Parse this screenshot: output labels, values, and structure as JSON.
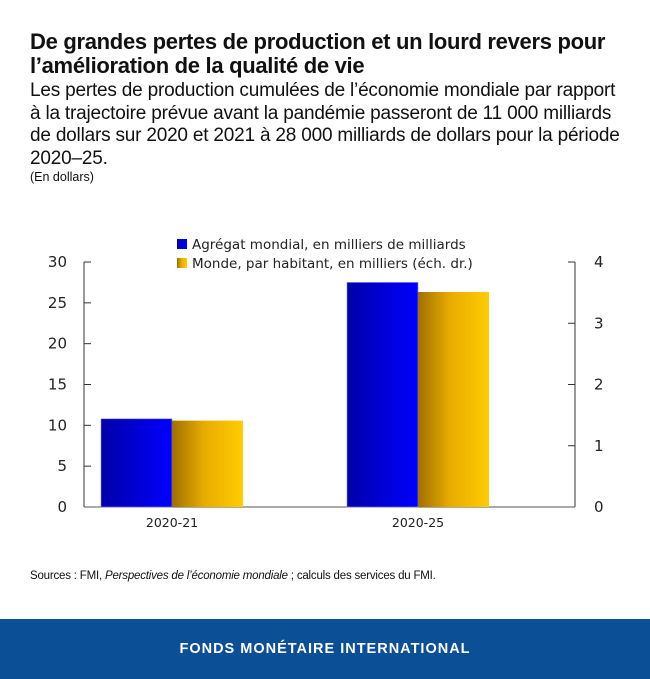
{
  "header": {
    "title": "De grandes pertes de production et un lourd revers pour l’amélioration de la qualité de vie",
    "subtitle": "Les pertes de production cumulées de l’économie mondiale par rapport à la trajectoire prévue avant la pandémie passeront de 11 000 milliards de dollars sur 2020 et 2021 à 28 000 milliards de dollars pour la période 2020–25.",
    "unit": "(En dollars)"
  },
  "sources": {
    "prefix": "Sources : FMI, ",
    "italic": "Perspectives de l’économie mondiale",
    "suffix": " ; calculs des services du FMI."
  },
  "footer": {
    "label": "FONDS MONÉTAIRE INTERNATIONAL"
  },
  "chart_data": {
    "type": "bar",
    "title": "De grandes pertes de production et un lourd revers pour l’amélioration de la qualité de vie",
    "categories": [
      "2020-21",
      "2020-25"
    ],
    "series": [
      {
        "name": "Agrégat mondial, en milliers de milliards",
        "axis": "left",
        "values": [
          10.8,
          27.5
        ],
        "color": "#0000FF",
        "color_dark": "#0000A8"
      },
      {
        "name": "Monde, par habitant, en milliers (éch. dr.)",
        "axis": "right",
        "values": [
          1.41,
          3.51
        ],
        "color": "#FFCC00",
        "color_dark": "#A07000"
      }
    ],
    "xlabel": "",
    "ylabel": "",
    "ylim": [
      0,
      30
    ],
    "y_ticks": [
      0,
      5,
      10,
      15,
      20,
      25,
      30
    ],
    "y2lim": [
      0,
      4
    ],
    "y2_ticks": [
      0,
      1,
      2,
      3,
      4
    ],
    "grid": false,
    "legend_position": "top-center"
  }
}
